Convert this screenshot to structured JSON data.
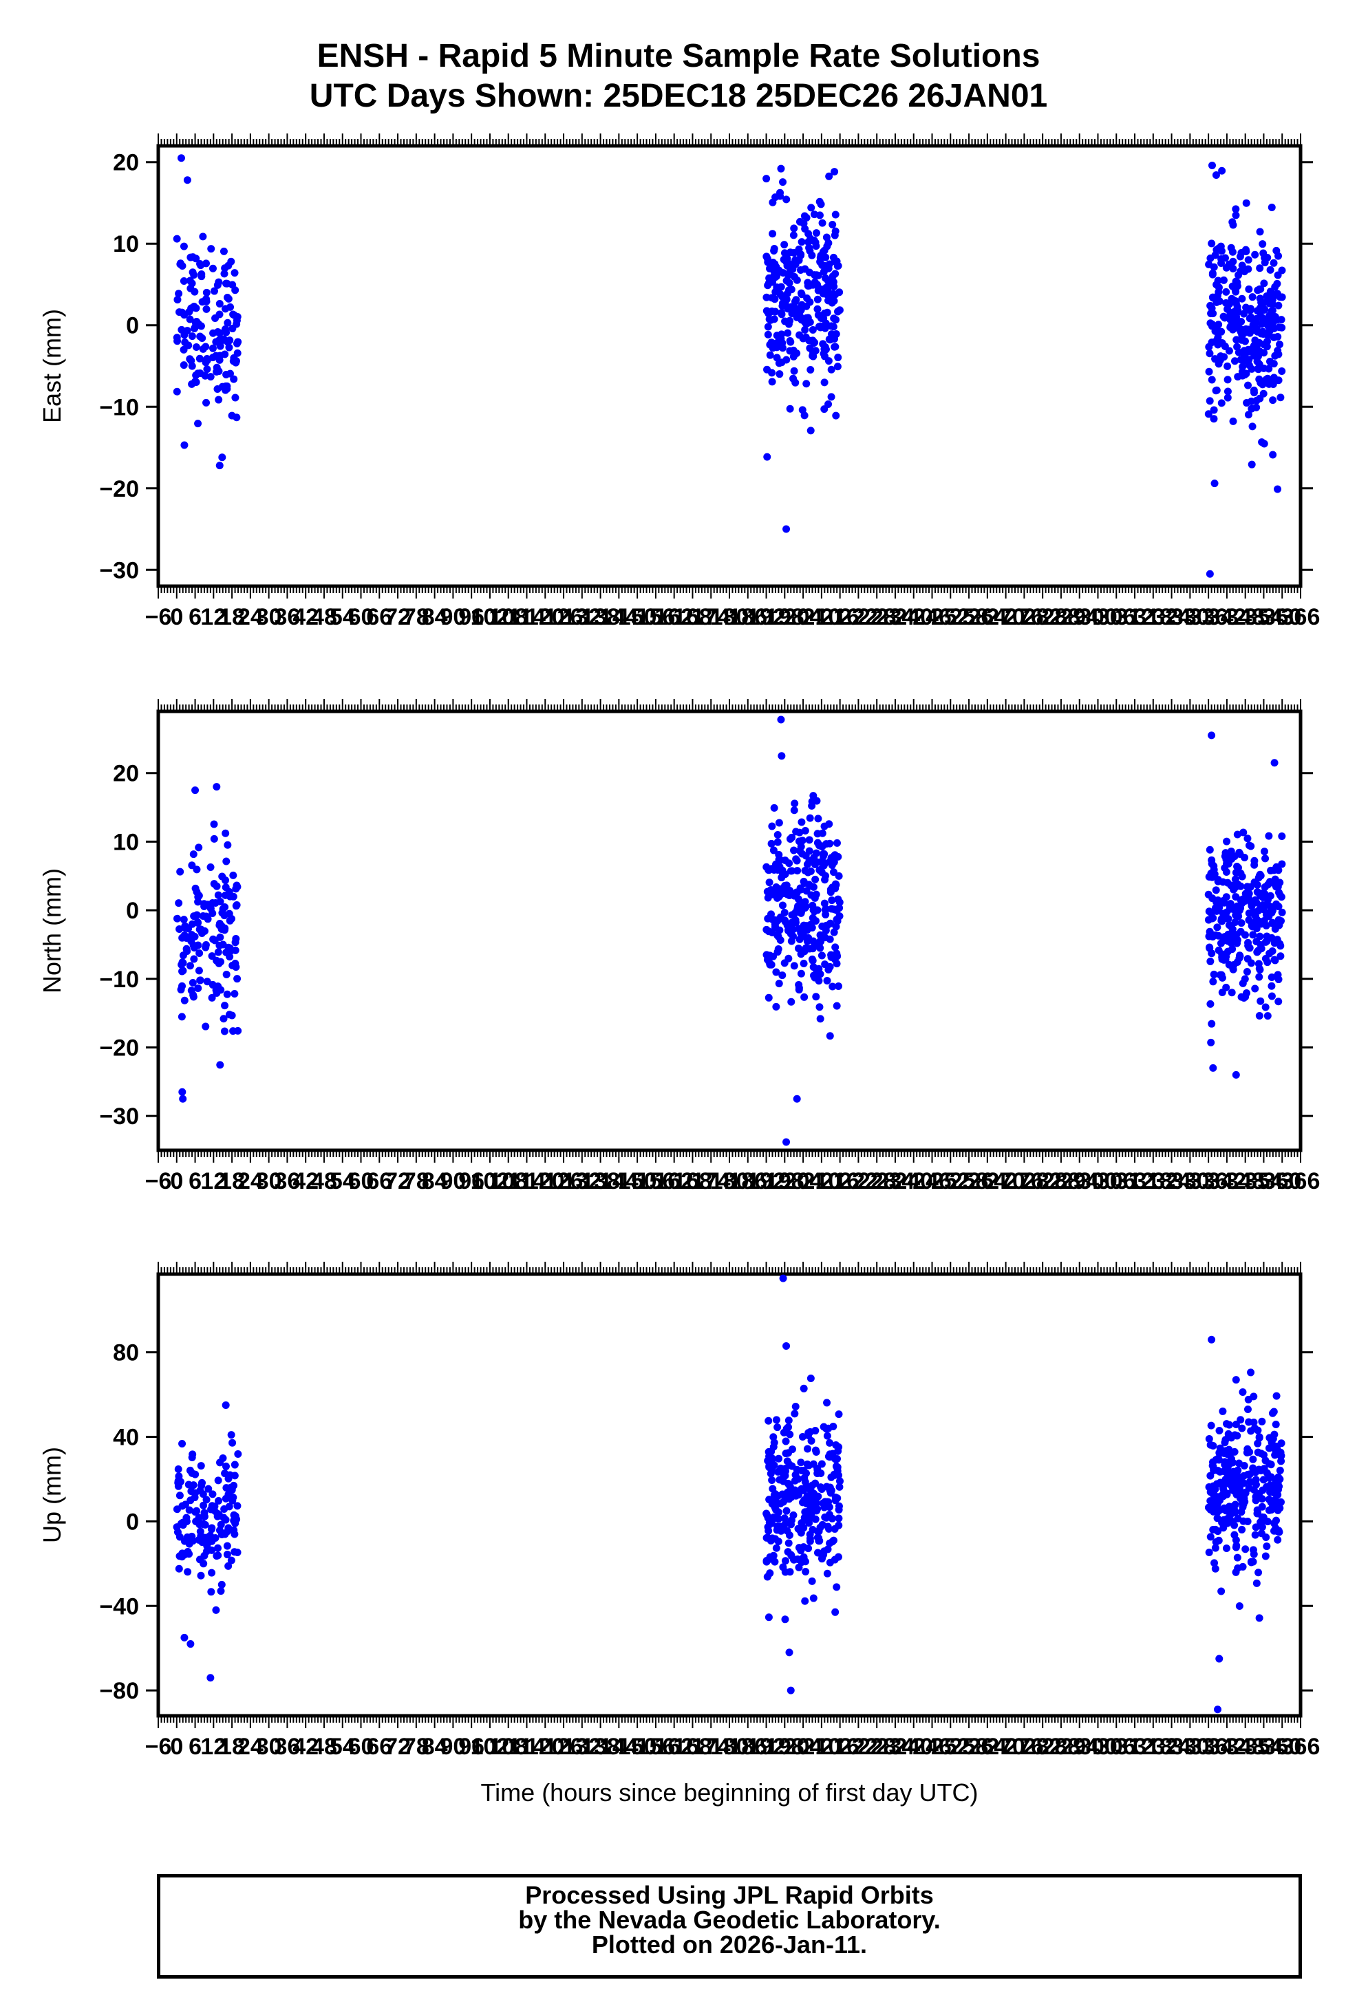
{
  "header": {
    "title_line1": "ENSH - Rapid 5 Minute Sample Rate Solutions",
    "title_line2": "UTC Days Shown:  25DEC18 25DEC26 26JAN01"
  },
  "x_axis_label": "Time (hours since beginning of first day UTC)",
  "footer": {
    "line1": "Processed Using JPL Rapid Orbits",
    "line2": "by the Nevada Geodetic Laboratory.",
    "line3": "Plotted on 2026-Jan-11."
  },
  "colors": {
    "points": "#0000ff",
    "axis": "#000000"
  },
  "chart_data": [
    {
      "type": "scatter",
      "name": "east",
      "ylabel": "East (mm)",
      "xlabel": "",
      "xlim": [
        -6,
        366
      ],
      "ylim": [
        -32,
        22
      ],
      "yticks": [
        -30,
        -20,
        -10,
        0,
        10,
        20
      ],
      "xticks": [
        -6,
        0,
        6,
        12,
        18,
        24,
        30,
        36,
        42,
        48,
        54,
        60,
        66,
        72,
        78,
        84,
        90,
        96,
        102,
        108,
        114,
        120,
        126,
        132,
        138,
        144,
        150,
        156,
        162,
        168,
        174,
        180,
        186,
        192,
        198,
        204,
        210,
        216,
        222,
        228,
        234,
        240,
        246,
        252,
        258,
        264,
        270,
        276,
        282,
        288,
        294,
        300,
        306,
        312,
        318,
        324,
        330,
        336,
        342,
        348,
        354,
        360,
        366
      ],
      "clusters": [
        {
          "x_range": [
            0,
            20
          ],
          "y_center": 0,
          "y_spread": 5.0,
          "n": 150
        },
        {
          "x_range": [
            192,
            216
          ],
          "y_center": 3,
          "y_spread": 5.5,
          "n": 300
        },
        {
          "x_range": [
            336,
            360
          ],
          "y_center": 0,
          "y_spread": 6.0,
          "n": 300
        }
      ],
      "outliers": [
        {
          "x": 1.5,
          "y": 20.5
        },
        {
          "x": 3.5,
          "y": 17.8
        },
        {
          "x": 2.5,
          "y": -14.7
        },
        {
          "x": 14.0,
          "y": -17.2
        },
        {
          "x": 14.8,
          "y": -16.2
        },
        {
          "x": 198.5,
          "y": -25.0
        },
        {
          "x": 196.8,
          "y": 19.2
        },
        {
          "x": 336.5,
          "y": -30.5
        },
        {
          "x": 337.2,
          "y": 19.6
        },
        {
          "x": 338.0,
          "y": -19.4
        },
        {
          "x": 358.5,
          "y": -20.1
        }
      ]
    },
    {
      "type": "scatter",
      "name": "north",
      "ylabel": "North (mm)",
      "xlabel": "",
      "xlim": [
        -6,
        366
      ],
      "ylim": [
        -35,
        29
      ],
      "yticks": [
        -30,
        -20,
        -10,
        0,
        10,
        20
      ],
      "xticks": [
        -6,
        0,
        6,
        12,
        18,
        24,
        30,
        36,
        42,
        48,
        54,
        60,
        66,
        72,
        78,
        84,
        90,
        96,
        102,
        108,
        114,
        120,
        126,
        132,
        138,
        144,
        150,
        156,
        162,
        168,
        174,
        180,
        186,
        192,
        198,
        204,
        210,
        216,
        222,
        228,
        234,
        240,
        246,
        252,
        258,
        264,
        270,
        276,
        282,
        288,
        294,
        300,
        306,
        312,
        318,
        324,
        330,
        336,
        342,
        348,
        354,
        360,
        366
      ],
      "clusters": [
        {
          "x_range": [
            0,
            20
          ],
          "y_center": -4,
          "y_spread": 6.5,
          "n": 150
        },
        {
          "x_range": [
            192,
            216
          ],
          "y_center": 0,
          "y_spread": 7.0,
          "n": 300
        },
        {
          "x_range": [
            336,
            360
          ],
          "y_center": -1,
          "y_spread": 5.5,
          "n": 300
        }
      ],
      "outliers": [
        {
          "x": 2.0,
          "y": -27.5
        },
        {
          "x": 1.8,
          "y": -26.5
        },
        {
          "x": 6.0,
          "y": 17.5
        },
        {
          "x": 13.0,
          "y": 18.0
        },
        {
          "x": 196.8,
          "y": 27.8
        },
        {
          "x": 197.0,
          "y": 22.5
        },
        {
          "x": 198.5,
          "y": -33.8
        },
        {
          "x": 202.0,
          "y": -27.5
        },
        {
          "x": 337.0,
          "y": 25.5
        },
        {
          "x": 337.5,
          "y": -23.0
        },
        {
          "x": 345.0,
          "y": -24.0
        },
        {
          "x": 357.5,
          "y": 21.5
        }
      ]
    },
    {
      "type": "scatter",
      "name": "up",
      "ylabel": "Up (mm)",
      "xlabel": "Time (hours since beginning of first day UTC)",
      "xlim": [
        -6,
        366
      ],
      "ylim": [
        -92,
        117
      ],
      "yticks": [
        -80,
        -40,
        0,
        40,
        80
      ],
      "xticks": [
        -6,
        0,
        6,
        12,
        18,
        24,
        30,
        36,
        42,
        48,
        54,
        60,
        66,
        72,
        78,
        84,
        90,
        96,
        102,
        108,
        114,
        120,
        126,
        132,
        138,
        144,
        150,
        156,
        162,
        168,
        174,
        180,
        186,
        192,
        198,
        204,
        210,
        216,
        222,
        228,
        234,
        240,
        246,
        252,
        258,
        264,
        270,
        276,
        282,
        288,
        294,
        300,
        306,
        312,
        318,
        324,
        330,
        336,
        342,
        348,
        354,
        360,
        366
      ],
      "clusters": [
        {
          "x_range": [
            0,
            20
          ],
          "y_center": 2,
          "y_spread": 15,
          "n": 150
        },
        {
          "x_range": [
            192,
            216
          ],
          "y_center": 8,
          "y_spread": 22,
          "n": 300
        },
        {
          "x_range": [
            336,
            360
          ],
          "y_center": 14,
          "y_spread": 18,
          "n": 300
        }
      ],
      "outliers": [
        {
          "x": 2.5,
          "y": -55
        },
        {
          "x": 4.5,
          "y": -58
        },
        {
          "x": 11.0,
          "y": -74
        },
        {
          "x": 16.0,
          "y": 55
        },
        {
          "x": 197.5,
          "y": 115
        },
        {
          "x": 198.5,
          "y": 83
        },
        {
          "x": 200.0,
          "y": -80
        },
        {
          "x": 199.5,
          "y": -62
        },
        {
          "x": 337.0,
          "y": 86
        },
        {
          "x": 339.5,
          "y": -65
        },
        {
          "x": 339.0,
          "y": -89
        },
        {
          "x": 345.0,
          "y": 67
        }
      ]
    }
  ]
}
